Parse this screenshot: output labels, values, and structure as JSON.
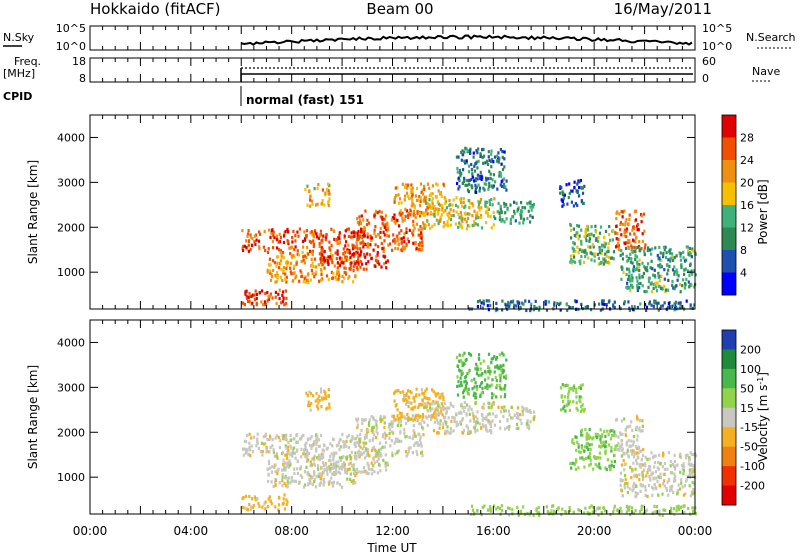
{
  "header": {
    "station": "Hokkaido (fitACF)",
    "beam": "Beam 00",
    "date": "16/May/2011"
  },
  "noise_panel": {
    "left_label": "N.Sky",
    "left_ticks": [
      "10^5",
      "10^0"
    ],
    "right_ticks": [
      "10^5",
      "10^0"
    ],
    "right_label": "N.Search"
  },
  "freq_panel": {
    "left_label_1": "Freq.",
    "left_label_2": "[MHz]",
    "left_ticks": [
      "18",
      "8"
    ],
    "right_ticks": [
      "60",
      "0"
    ],
    "right_label": "Nave"
  },
  "cpid": {
    "label": "CPID",
    "program": "normal (fast) 151"
  },
  "chart_data": [
    {
      "type": "heatmap",
      "name": "power",
      "ylabel": "Slant Range [km]",
      "yticks": [
        1000,
        2000,
        3000,
        4000
      ],
      "ylim": [
        180,
        4500
      ],
      "colorbar": {
        "label": "Power [dB]",
        "ticks": [
          4,
          8,
          12,
          16,
          20,
          24,
          28
        ],
        "colors": [
          "#0000ff",
          "#1f4fb0",
          "#2e8a55",
          "#3fb27a",
          "#f4c000",
          "#f09010",
          "#f05000",
          "#e00000"
        ]
      },
      "regions": [
        {
          "t0": 6.0,
          "t1": 11.0,
          "r0": 1500,
          "r1": 2000,
          "v": 26
        },
        {
          "t0": 6.0,
          "t1": 7.8,
          "r0": 300,
          "r1": 650,
          "v": 27
        },
        {
          "t0": 7.0,
          "t1": 10.5,
          "r0": 800,
          "r1": 1500,
          "v": 22
        },
        {
          "t0": 9.0,
          "t1": 11.8,
          "r0": 1100,
          "r1": 1500,
          "v": 28
        },
        {
          "t0": 10.5,
          "t1": 13.2,
          "r0": 1500,
          "r1": 2400,
          "v": 25
        },
        {
          "t0": 12.0,
          "t1": 14.0,
          "r0": 2300,
          "r1": 3000,
          "v": 22
        },
        {
          "t0": 13.2,
          "t1": 16.0,
          "r0": 2000,
          "r1": 2700,
          "v": 18
        },
        {
          "t0": 16.0,
          "t1": 17.6,
          "r0": 2100,
          "r1": 2600,
          "v": 12
        },
        {
          "t0": 18.6,
          "t1": 19.6,
          "r0": 2500,
          "r1": 3100,
          "v": 6
        },
        {
          "t0": 19.0,
          "t1": 20.8,
          "r0": 1200,
          "r1": 2100,
          "v": 14
        },
        {
          "t0": 20.8,
          "t1": 22.0,
          "r0": 1500,
          "r1": 2400,
          "v": 25
        },
        {
          "t0": 21.0,
          "t1": 24.0,
          "r0": 600,
          "r1": 1600,
          "v": 12
        },
        {
          "t0": 15.0,
          "t1": 24.0,
          "r0": 180,
          "r1": 400,
          "v": 8
        },
        {
          "t0": 8.5,
          "t1": 9.5,
          "r0": 2500,
          "r1": 3000,
          "v": 20
        },
        {
          "t0": 14.5,
          "t1": 16.5,
          "r0": 2800,
          "r1": 3800,
          "v": 8
        }
      ]
    },
    {
      "type": "heatmap",
      "name": "velocity",
      "ylabel": "Slant Range [km]",
      "yticks": [
        1000,
        2000,
        3000,
        4000
      ],
      "ylim": [
        180,
        4500
      ],
      "colorbar": {
        "label": "Velocity [m s^-1]",
        "ticks": [
          200,
          100,
          50,
          15,
          -15,
          -50,
          -100,
          -200
        ],
        "colors": [
          "#1f3fb0",
          "#1f8a3a",
          "#49b84a",
          "#8fd44a",
          "#c8c8c0",
          "#f4b020",
          "#f08010",
          "#f03000",
          "#e00000"
        ]
      },
      "regions": [
        {
          "t0": 6.0,
          "t1": 11.0,
          "r0": 1500,
          "r1": 2000,
          "v": 0
        },
        {
          "t0": 6.0,
          "t1": 7.8,
          "r0": 300,
          "r1": 650,
          "v": -30
        },
        {
          "t0": 7.0,
          "t1": 10.5,
          "r0": 800,
          "r1": 1500,
          "v": 0
        },
        {
          "t0": 9.0,
          "t1": 11.8,
          "r0": 1100,
          "r1": 1500,
          "v": 0
        },
        {
          "t0": 10.5,
          "t1": 13.2,
          "r0": 1500,
          "r1": 2400,
          "v": 0
        },
        {
          "t0": 12.0,
          "t1": 14.0,
          "r0": 2300,
          "r1": 3000,
          "v": -30
        },
        {
          "t0": 13.2,
          "t1": 16.0,
          "r0": 2000,
          "r1": 2700,
          "v": 0
        },
        {
          "t0": 16.0,
          "t1": 17.6,
          "r0": 2100,
          "r1": 2600,
          "v": 0
        },
        {
          "t0": 18.6,
          "t1": 19.6,
          "r0": 2500,
          "r1": 3100,
          "v": 40
        },
        {
          "t0": 19.0,
          "t1": 20.8,
          "r0": 1200,
          "r1": 2100,
          "v": 40
        },
        {
          "t0": 20.8,
          "t1": 22.0,
          "r0": 1500,
          "r1": 2400,
          "v": 0
        },
        {
          "t0": 21.0,
          "t1": 24.0,
          "r0": 600,
          "r1": 1600,
          "v": 0
        },
        {
          "t0": 15.0,
          "t1": 24.0,
          "r0": 180,
          "r1": 400,
          "v": 30
        },
        {
          "t0": 8.5,
          "t1": 9.5,
          "r0": 2500,
          "r1": 3000,
          "v": -30
        },
        {
          "t0": 14.5,
          "t1": 16.5,
          "r0": 2800,
          "r1": 3800,
          "v": 60
        }
      ]
    }
  ],
  "x_axis": {
    "label": "Time UT",
    "xlim": [
      0,
      24
    ],
    "ticks": [
      {
        "t": 0,
        "label": "00:00"
      },
      {
        "t": 4,
        "label": "04:00"
      },
      {
        "t": 8,
        "label": "08:00"
      },
      {
        "t": 12,
        "label": "12:00"
      },
      {
        "t": 16,
        "label": "16:00"
      },
      {
        "t": 20,
        "label": "20:00"
      },
      {
        "t": 24,
        "label": "00:00"
      }
    ],
    "data_start": 6.0
  }
}
